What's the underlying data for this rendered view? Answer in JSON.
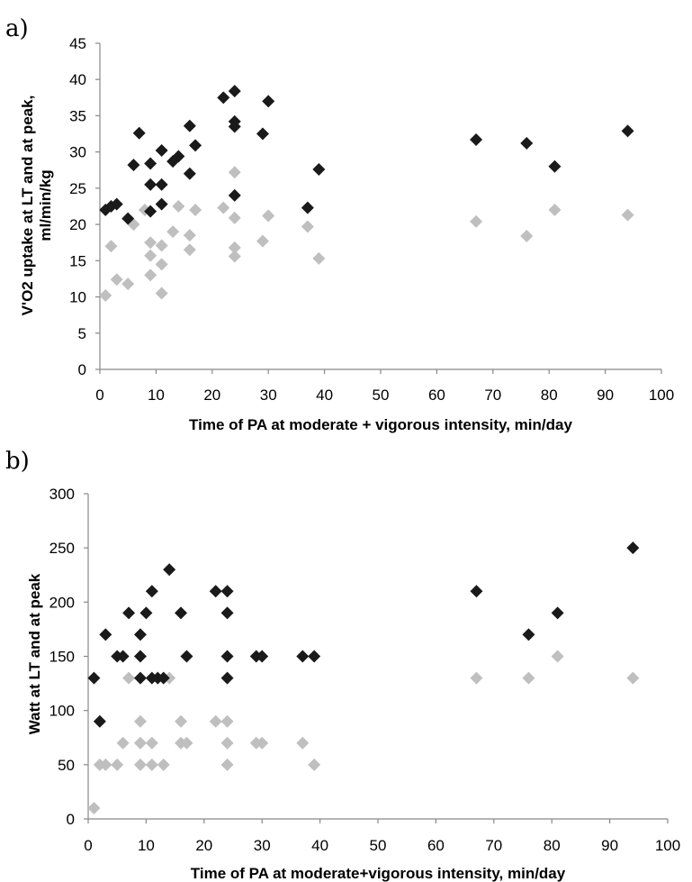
{
  "colors": {
    "peak": "#1a1a1a",
    "lt": "#bfbfbf",
    "axis": "#888888"
  },
  "chart_data": [
    {
      "type": "scatter",
      "panel_label": "a)",
      "xlabel": "Time of PA at moderate + vigorous intensity, min/day",
      "ylabel_lines": [
        "V'O2 uptake at LT and at peak,",
        "ml/min/kg"
      ],
      "xlim": [
        0,
        100
      ],
      "ylim": [
        0,
        45
      ],
      "xticks": [
        0,
        10,
        20,
        30,
        40,
        50,
        60,
        70,
        80,
        90,
        100
      ],
      "yticks": [
        0,
        5,
        10,
        15,
        20,
        25,
        30,
        35,
        40,
        45
      ],
      "marker": "diamond",
      "grid": false,
      "legend": "none",
      "series": [
        {
          "points": [
            [
              1,
              22
            ],
            [
              2,
              22.5
            ],
            [
              3,
              22.8
            ],
            [
              5,
              20.8
            ],
            [
              6,
              28.2
            ],
            [
              7,
              32.6
            ],
            [
              9,
              21.8
            ],
            [
              9,
              25.5
            ],
            [
              9,
              28.4
            ],
            [
              11,
              22.8
            ],
            [
              11,
              25.5
            ],
            [
              11,
              30.2
            ],
            [
              13,
              28.7
            ],
            [
              14,
              29.4
            ],
            [
              16,
              27
            ],
            [
              16,
              33.6
            ],
            [
              17,
              30.9
            ],
            [
              22,
              37.5
            ],
            [
              24,
              24
            ],
            [
              24,
              33.5
            ],
            [
              24,
              34.2
            ],
            [
              24,
              38.4
            ],
            [
              29,
              32.5
            ],
            [
              30,
              37
            ],
            [
              37,
              22.3
            ],
            [
              39,
              27.6
            ],
            [
              67,
              31.7
            ],
            [
              76,
              31.2
            ],
            [
              81,
              28
            ],
            [
              94,
              32.9
            ]
          ],
          "color": "#1a1a1a"
        },
        {
          "points": [
            [
              1,
              10.2
            ],
            [
              2,
              17
            ],
            [
              3,
              12.4
            ],
            [
              5,
              11.8
            ],
            [
              6,
              20
            ],
            [
              8,
              22
            ],
            [
              9,
              13
            ],
            [
              9,
              15.7
            ],
            [
              9,
              17.5
            ],
            [
              11,
              10.5
            ],
            [
              11,
              14.5
            ],
            [
              11,
              17.1
            ],
            [
              13,
              19
            ],
            [
              14,
              22.5
            ],
            [
              16,
              16.5
            ],
            [
              16,
              18.5
            ],
            [
              17,
              22
            ],
            [
              22,
              22.3
            ],
            [
              24,
              15.6
            ],
            [
              24,
              16.8
            ],
            [
              24,
              20.9
            ],
            [
              24,
              27.2
            ],
            [
              29,
              17.7
            ],
            [
              30,
              21.2
            ],
            [
              37,
              19.7
            ],
            [
              39,
              15.3
            ],
            [
              67,
              20.4
            ],
            [
              76,
              18.4
            ],
            [
              81,
              22
            ],
            [
              94,
              21.3
            ]
          ],
          "color": "#bfbfbf"
        }
      ]
    },
    {
      "type": "scatter",
      "panel_label": "b)",
      "xlabel": "Time of PA at moderate+vigorous intensity, min/day",
      "ylabel_lines": [
        "Watt at LT and at peak"
      ],
      "xlim": [
        0,
        100
      ],
      "ylim": [
        0,
        300
      ],
      "xticks": [
        0,
        10,
        20,
        30,
        40,
        50,
        60,
        70,
        80,
        90,
        100
      ],
      "yticks": [
        0,
        50,
        100,
        150,
        200,
        250,
        300
      ],
      "marker": "diamond",
      "grid": false,
      "legend": "none",
      "series": [
        {
          "points": [
            [
              1,
              130
            ],
            [
              2,
              90
            ],
            [
              3,
              170
            ],
            [
              5,
              150
            ],
            [
              6,
              150
            ],
            [
              7,
              190
            ],
            [
              9,
              130
            ],
            [
              9,
              150
            ],
            [
              9,
              170
            ],
            [
              10,
              190
            ],
            [
              11,
              130
            ],
            [
              11,
              210
            ],
            [
              12,
              130
            ],
            [
              13,
              130
            ],
            [
              14,
              230
            ],
            [
              16,
              190
            ],
            [
              17,
              150
            ],
            [
              22,
              210
            ],
            [
              24,
              130
            ],
            [
              24,
              150
            ],
            [
              24,
              190
            ],
            [
              24,
              210
            ],
            [
              29,
              150
            ],
            [
              30,
              150
            ],
            [
              37,
              150
            ],
            [
              39,
              150
            ],
            [
              67,
              210
            ],
            [
              76,
              170
            ],
            [
              81,
              190
            ],
            [
              94,
              250
            ]
          ],
          "color": "#1a1a1a"
        },
        {
          "points": [
            [
              1,
              10
            ],
            [
              2,
              50
            ],
            [
              3,
              50
            ],
            [
              5,
              50
            ],
            [
              6,
              70
            ],
            [
              7,
              130
            ],
            [
              9,
              50
            ],
            [
              9,
              70
            ],
            [
              9,
              90
            ],
            [
              11,
              50
            ],
            [
              11,
              70
            ],
            [
              13,
              50
            ],
            [
              14,
              130
            ],
            [
              16,
              70
            ],
            [
              16,
              90
            ],
            [
              17,
              70
            ],
            [
              22,
              90
            ],
            [
              24,
              50
            ],
            [
              24,
              70
            ],
            [
              24,
              90
            ],
            [
              29,
              70
            ],
            [
              30,
              70
            ],
            [
              37,
              70
            ],
            [
              39,
              50
            ],
            [
              67,
              130
            ],
            [
              76,
              130
            ],
            [
              81,
              150
            ],
            [
              94,
              130
            ]
          ],
          "color": "#bfbfbf"
        }
      ]
    }
  ]
}
